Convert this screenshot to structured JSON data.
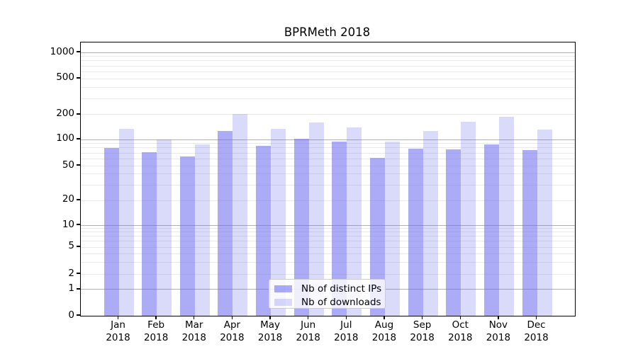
{
  "chart_data": {
    "type": "bar",
    "title": "BPRMeth 2018",
    "categories": [
      "Jan 2018",
      "Feb 2018",
      "Mar 2018",
      "Apr 2018",
      "May 2018",
      "Jun 2018",
      "Jul 2018",
      "Aug 2018",
      "Sep 2018",
      "Oct 2018",
      "Nov 2018",
      "Dec 2018"
    ],
    "series": [
      {
        "name": "Nb of distinct IPs",
        "color": "#6666ee8c",
        "values": [
          80,
          71,
          64,
          126,
          84,
          103,
          95,
          61,
          79,
          77,
          88,
          76
        ]
      },
      {
        "name": "Nb of downloads",
        "color": "#6666ee3d",
        "values": [
          134,
          100,
          88,
          205,
          134,
          160,
          140,
          95,
          128,
          163,
          190,
          133
        ]
      }
    ],
    "xlabel": "",
    "ylabel": "",
    "yticks": [
      0,
      1,
      2,
      5,
      10,
      20,
      50,
      100,
      200,
      500,
      1000
    ],
    "ylim": [
      0,
      1300
    ],
    "yscale": "symlog",
    "grid": true,
    "legend_position": "inside lower-center",
    "colors": {
      "major_grid": "#b0b0b0",
      "minor_grid": "#e9e9e9",
      "spine": "#000000",
      "text": "#000000",
      "legend_border": "#cccccc"
    }
  }
}
